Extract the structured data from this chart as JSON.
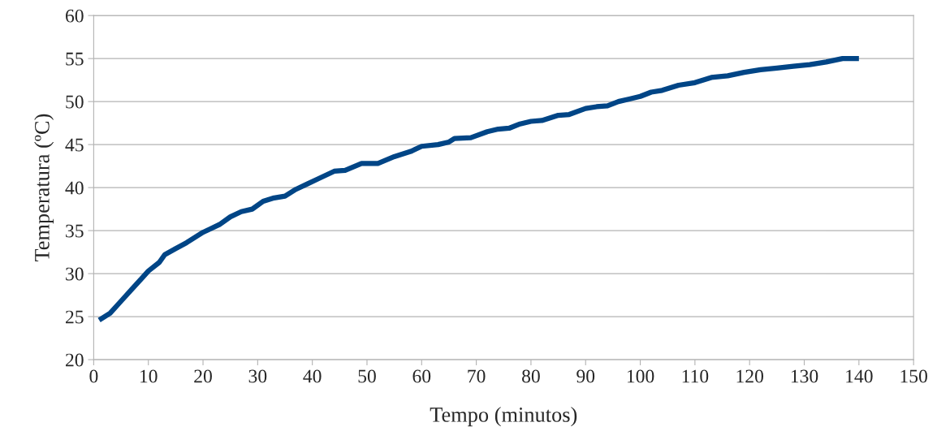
{
  "chart_data": {
    "type": "line",
    "xlabel": "Tempo (minutos)",
    "ylabel": "Temperatura (ºC)",
    "xlim": [
      0,
      150
    ],
    "xticks": [
      0,
      10,
      20,
      30,
      40,
      50,
      60,
      70,
      80,
      90,
      100,
      110,
      120,
      130,
      140,
      150
    ],
    "ylim": [
      20,
      60
    ],
    "yticks": [
      20,
      25,
      30,
      35,
      40,
      45,
      50,
      55,
      60
    ],
    "grid": "y",
    "legend": false,
    "marker": "none",
    "line_style": "solid",
    "series": [
      {
        "color": "#004586",
        "x": [
          1,
          3,
          5,
          7,
          9,
          10,
          12,
          13,
          15,
          17,
          20,
          23,
          25,
          27,
          29,
          31,
          33,
          35,
          37,
          39,
          41,
          44,
          46,
          49,
          52,
          55,
          58,
          60,
          63,
          65,
          66,
          69,
          72,
          74,
          76,
          78,
          80,
          82,
          85,
          87,
          90,
          92,
          94,
          96,
          98,
          100,
          102,
          104,
          107,
          110,
          113,
          116,
          119,
          122,
          125,
          128,
          131,
          134,
          137,
          140
        ],
        "values": [
          24.6,
          25.4,
          26.8,
          28.2,
          29.6,
          30.3,
          31.3,
          32.2,
          32.9,
          33.6,
          34.8,
          35.7,
          36.6,
          37.2,
          37.5,
          38.4,
          38.8,
          39.0,
          39.8,
          40.4,
          41.0,
          41.9,
          42.0,
          42.8,
          42.8,
          43.6,
          44.2,
          44.8,
          45.0,
          45.3,
          45.7,
          45.8,
          46.5,
          46.8,
          46.9,
          47.4,
          47.7,
          47.8,
          48.4,
          48.5,
          49.2,
          49.4,
          49.5,
          50.0,
          50.3,
          50.6,
          51.1,
          51.3,
          51.9,
          52.2,
          52.8,
          53.0,
          53.4,
          53.7,
          53.9,
          54.1,
          54.3,
          54.6,
          55.0,
          55.0
        ]
      }
    ]
  }
}
